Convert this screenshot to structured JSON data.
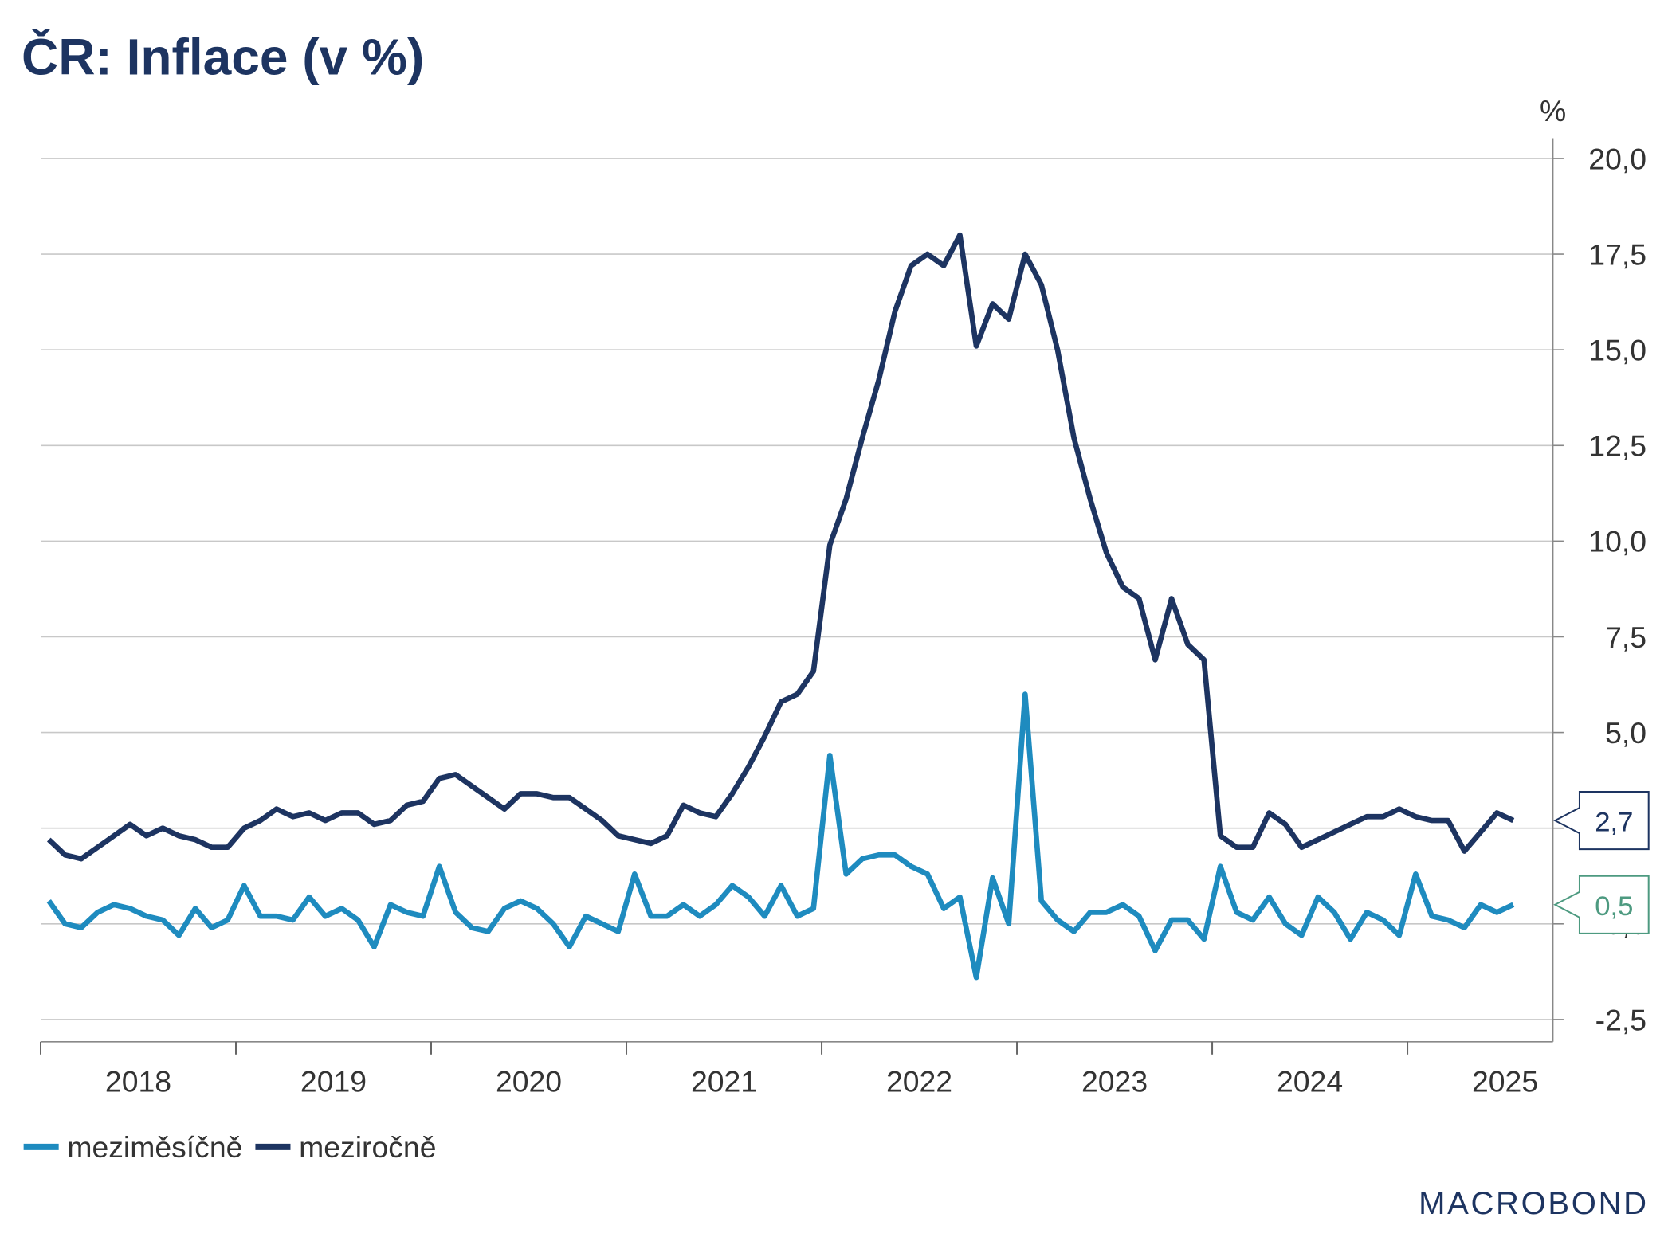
{
  "chart_data": {
    "type": "line",
    "title": "ČR: Inflace (v %)",
    "y_unit": "%",
    "x": [
      2018.042,
      2018.125,
      2018.208,
      2018.292,
      2018.375,
      2018.458,
      2018.542,
      2018.625,
      2018.708,
      2018.792,
      2018.875,
      2018.958,
      2019.042,
      2019.125,
      2019.208,
      2019.292,
      2019.375,
      2019.458,
      2019.542,
      2019.625,
      2019.708,
      2019.792,
      2019.875,
      2019.958,
      2020.042,
      2020.125,
      2020.208,
      2020.292,
      2020.375,
      2020.458,
      2020.542,
      2020.625,
      2020.708,
      2020.792,
      2020.875,
      2020.958,
      2021.042,
      2021.125,
      2021.208,
      2021.292,
      2021.375,
      2021.458,
      2021.542,
      2021.625,
      2021.708,
      2021.792,
      2021.875,
      2021.958,
      2022.042,
      2022.125,
      2022.208,
      2022.292,
      2022.375,
      2022.458,
      2022.542,
      2022.625,
      2022.708,
      2022.792,
      2022.875,
      2022.958,
      2023.042,
      2023.125,
      2023.208,
      2023.292,
      2023.375,
      2023.458,
      2023.542,
      2023.625,
      2023.708,
      2023.792,
      2023.875,
      2023.958,
      2024.042,
      2024.125,
      2024.208,
      2024.292,
      2024.375,
      2024.458,
      2024.542,
      2024.625,
      2024.708,
      2024.792,
      2024.875,
      2024.958,
      2025.042,
      2025.125,
      2025.208,
      2025.292,
      2025.375,
      2025.458,
      2025.542
    ],
    "series": [
      {
        "name": "meziměsíčně",
        "color": "#1e8bbf",
        "label_color": "#4d9a80",
        "values": [
          0.6,
          0.0,
          -0.1,
          0.3,
          0.5,
          0.4,
          0.2,
          0.1,
          -0.3,
          0.4,
          -0.1,
          0.1,
          1.0,
          0.2,
          0.2,
          0.1,
          0.7,
          0.2,
          0.4,
          0.1,
          -0.6,
          0.5,
          0.3,
          0.2,
          1.5,
          0.3,
          -0.1,
          -0.2,
          0.4,
          0.6,
          0.4,
          0.0,
          -0.6,
          0.2,
          0.0,
          -0.2,
          1.3,
          0.2,
          0.2,
          0.5,
          0.2,
          0.5,
          1.0,
          0.7,
          0.2,
          1.0,
          0.2,
          0.4,
          4.4,
          1.3,
          1.7,
          1.8,
          1.8,
          1.5,
          1.3,
          0.4,
          0.7,
          -1.4,
          1.2,
          0.0,
          6.0,
          0.6,
          0.1,
          -0.2,
          0.3,
          0.3,
          0.5,
          0.2,
          -0.7,
          0.1,
          0.1,
          -0.4,
          1.5,
          0.3,
          0.1,
          0.7,
          0.0,
          -0.3,
          0.7,
          0.3,
          -0.4,
          0.3,
          0.1,
          -0.3,
          1.3,
          0.2,
          0.1,
          -0.1,
          0.5,
          0.3,
          0.5
        ],
        "value_labels": [
          null,
          null,
          null,
          null,
          null,
          null,
          null,
          null,
          null,
          null,
          null,
          null,
          null,
          null,
          null,
          null,
          null,
          null,
          null,
          null,
          null,
          null,
          null,
          null,
          null,
          null,
          null,
          null,
          null,
          null,
          null,
          null,
          null,
          null,
          null,
          null,
          null,
          null,
          null,
          null,
          null,
          null,
          null,
          null,
          null,
          null,
          null,
          null,
          null,
          null,
          null,
          null,
          null,
          null,
          null,
          null,
          null,
          null,
          null,
          null,
          null,
          null,
          null,
          null,
          null,
          null,
          null,
          null,
          null,
          null,
          null,
          null,
          null,
          null,
          null,
          null,
          null,
          null,
          null,
          null,
          null,
          null,
          null,
          null,
          null,
          null,
          null,
          null,
          null,
          null,
          "0,5"
        ]
      },
      {
        "name": "meziročně",
        "color": "#1d3461",
        "label_color": "#1d3461",
        "values": [
          2.2,
          1.8,
          1.7,
          2.0,
          2.3,
          2.6,
          2.3,
          2.5,
          2.3,
          2.2,
          2.0,
          2.0,
          2.5,
          2.7,
          3.0,
          2.8,
          2.9,
          2.7,
          2.9,
          2.9,
          2.6,
          2.7,
          3.1,
          3.2,
          3.8,
          3.9,
          3.6,
          3.3,
          3.0,
          3.4,
          3.4,
          3.3,
          3.3,
          3.0,
          2.7,
          2.3,
          2.2,
          2.1,
          2.3,
          3.1,
          2.9,
          2.8,
          3.4,
          4.1,
          4.9,
          5.8,
          6.0,
          6.6,
          9.9,
          11.1,
          12.7,
          14.2,
          16.0,
          17.2,
          17.5,
          17.2,
          18.0,
          15.1,
          16.2,
          15.8,
          17.5,
          16.7,
          15.0,
          12.7,
          11.1,
          9.7,
          8.8,
          8.5,
          6.9,
          8.5,
          7.3,
          6.9,
          2.3,
          2.0,
          2.0,
          2.9,
          2.6,
          2.0,
          2.2,
          2.4,
          2.6,
          2.8,
          2.8,
          3.0,
          2.8,
          2.7,
          2.7,
          1.9,
          2.4,
          2.9,
          2.7
        ],
        "value_labels": [
          null,
          null,
          null,
          null,
          null,
          null,
          null,
          null,
          null,
          null,
          null,
          null,
          null,
          null,
          null,
          null,
          null,
          null,
          null,
          null,
          null,
          null,
          null,
          null,
          null,
          null,
          null,
          null,
          null,
          null,
          null,
          null,
          null,
          null,
          null,
          null,
          null,
          null,
          null,
          null,
          null,
          null,
          null,
          null,
          null,
          null,
          null,
          null,
          null,
          null,
          null,
          null,
          null,
          null,
          null,
          null,
          null,
          null,
          null,
          null,
          null,
          null,
          null,
          null,
          null,
          null,
          null,
          null,
          null,
          null,
          null,
          null,
          null,
          null,
          null,
          null,
          null,
          null,
          null,
          null,
          null,
          null,
          null,
          null,
          null,
          null,
          null,
          null,
          null,
          null,
          "2,7"
        ]
      }
    ],
    "xlim": [
      2018,
      2025.745
    ],
    "xticks": [
      2018,
      2019,
      2020,
      2021,
      2022,
      2023,
      2024,
      2025
    ],
    "ylim": [
      -3.08,
      20.53
    ],
    "yticks": [
      {
        "value": -2.5,
        "label": "-2,5"
      },
      {
        "value": 0,
        "label": "0,0"
      },
      {
        "value": 2.5,
        "label": "2,5"
      },
      {
        "value": 5,
        "label": "5,0"
      },
      {
        "value": 7.5,
        "label": "7,5"
      },
      {
        "value": 10,
        "label": "10,0"
      },
      {
        "value": 12.5,
        "label": "12,5"
      },
      {
        "value": 15,
        "label": "15,0"
      },
      {
        "value": 17.5,
        "label": "17,5"
      },
      {
        "value": 20,
        "label": "20,0"
      }
    ],
    "grid": true,
    "y_axis_side": "right",
    "legend": "bottom-left"
  },
  "logo": "MACROBOND"
}
